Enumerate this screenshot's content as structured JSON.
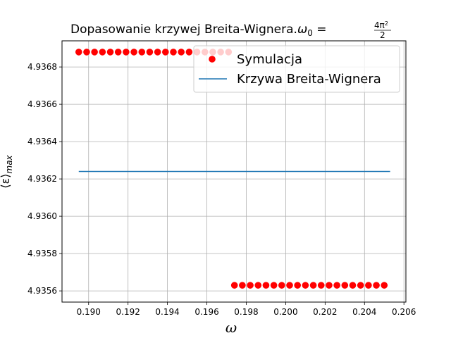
{
  "chart_data": {
    "type": "scatter",
    "title": "Dopasowanie krzywej Breita-Wignera.",
    "title_math": {
      "lhs": "ω",
      "lhs_sub": "0",
      "eq": " = ",
      "num": "4π",
      "num_sup": "2",
      "den": "2"
    },
    "xlabel": "ω",
    "ylabel": "⟨ε⟩",
    "ylabel_sub": "max",
    "xlim": [
      0.18865,
      0.2061
    ],
    "ylim": [
      4.93554,
      4.93694
    ],
    "grid": true,
    "legend_position": "top-right",
    "x_ticks": [
      {
        "value": 0.19,
        "label": "0.190"
      },
      {
        "value": 0.192,
        "label": "0.192"
      },
      {
        "value": 0.194,
        "label": "0.194"
      },
      {
        "value": 0.196,
        "label": "0.196"
      },
      {
        "value": 0.198,
        "label": "0.198"
      },
      {
        "value": 0.2,
        "label": "0.200"
      },
      {
        "value": 0.202,
        "label": "0.202"
      },
      {
        "value": 0.204,
        "label": "0.204"
      },
      {
        "value": 0.206,
        "label": "0.206"
      }
    ],
    "y_ticks": [
      {
        "value": 4.9356,
        "label": "4.9356"
      },
      {
        "value": 4.9358,
        "label": "4.9358"
      },
      {
        "value": 4.936,
        "label": "4.9360"
      },
      {
        "value": 4.9362,
        "label": "4.9362"
      },
      {
        "value": 4.9364,
        "label": "4.9364"
      },
      {
        "value": 4.9366,
        "label": "4.9366"
      },
      {
        "value": 4.9368,
        "label": "4.9368"
      }
    ],
    "series": [
      {
        "name": "Symulacja",
        "kind": "scatter",
        "color": "#ff0000",
        "groups": [
          {
            "x_start": 0.1895,
            "x_step": 0.0004,
            "count": 20,
            "y": 4.93688
          },
          {
            "x_start": 0.1974,
            "x_step": 0.0004,
            "count": 20,
            "y": 4.93563
          }
        ]
      },
      {
        "name": "Krzywa Breita-Wignera",
        "kind": "line",
        "color": "#1f77b4",
        "x": [
          0.1895,
          0.2053
        ],
        "y": [
          4.93624,
          4.93624
        ]
      }
    ]
  }
}
